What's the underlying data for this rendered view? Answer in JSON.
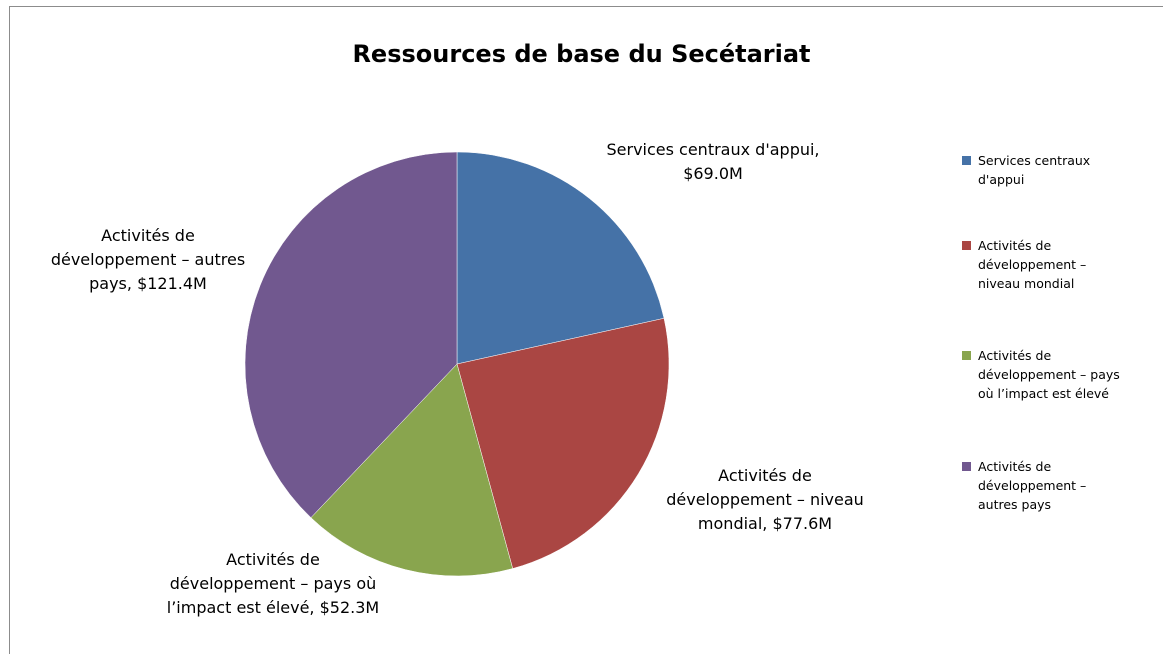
{
  "chart_data": {
    "type": "pie",
    "title": "Ressources de base du Secétariat",
    "categories": [
      "Services centraux d'appui",
      "Activités de développement – niveau mondial",
      "Activités de développement – pays où l’impact est élevé",
      "Activités de développement – autres pays"
    ],
    "values": [
      69.0,
      77.6,
      52.3,
      121.4
    ],
    "value_labels": [
      "Services centraux d'appui, $69.0M",
      "Activités de développement – niveau mondial, $77.6M",
      "Activités de développement – pays où l’impact est élevé, $52.3M",
      "Activités de développement – autres pays, $121.4M"
    ],
    "colors": [
      "#4572a7",
      "#aa4643",
      "#89a54e",
      "#71588f"
    ],
    "legend": "right"
  }
}
